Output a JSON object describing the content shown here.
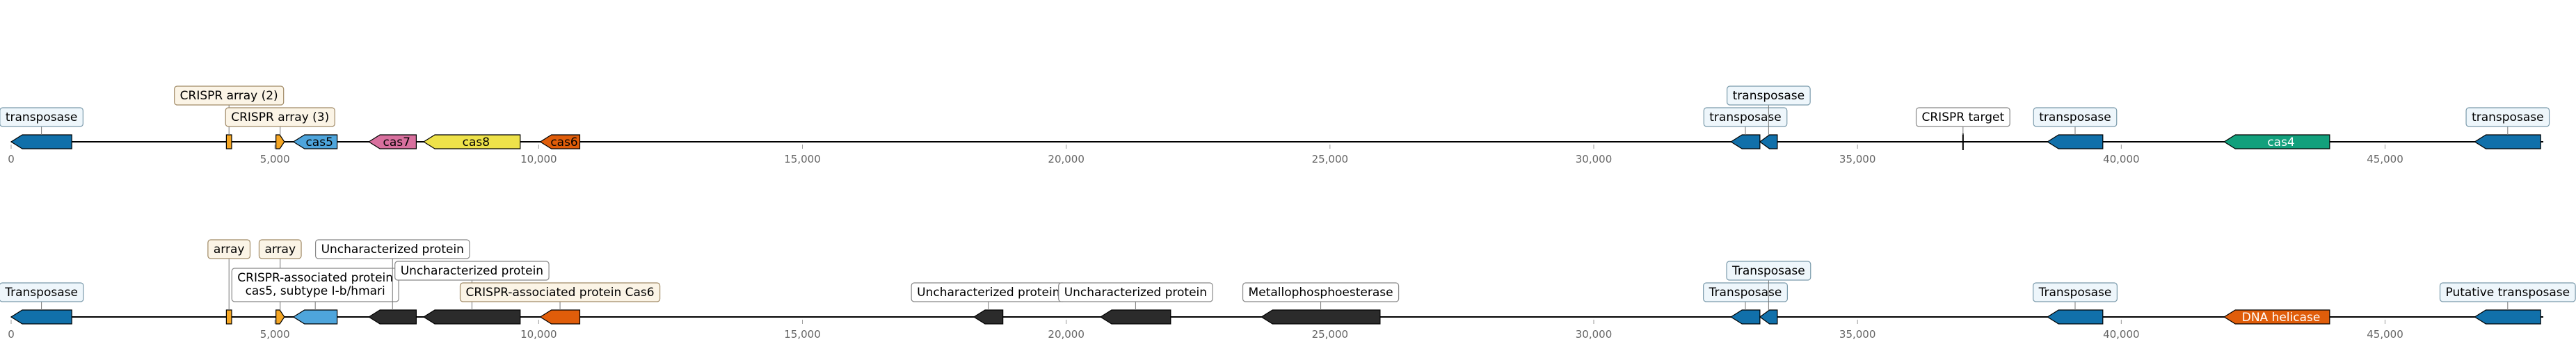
{
  "colors": {
    "transposase": "#1170aa",
    "crispr_array": "#f5a623",
    "cas5": "#4ea5dc",
    "cas7": "#d8709e",
    "cas8": "#eee24a",
    "cas6": "#e05d0a",
    "cas4": "#12a07c",
    "dna_helicase": "#e05d0a",
    "uncharacterized": "#2b2b2b",
    "backbone": "#000000"
  },
  "axis": {
    "min": 0,
    "max": 48000,
    "ticks": [
      0,
      5000,
      10000,
      15000,
      20000,
      25000,
      30000,
      35000,
      40000,
      45000
    ],
    "tick_labels": [
      "0",
      "5,000",
      "10,000",
      "15,000",
      "20,000",
      "25,000",
      "30,000",
      "35,000",
      "40,000",
      "45,000"
    ]
  },
  "tracks": [
    {
      "id": "top",
      "genes": [
        {
          "start": 0,
          "end": 1150,
          "strand": -1,
          "type": "transposase",
          "label": "transposase",
          "label_mode": "above",
          "level": 0
        },
        {
          "start": 4080,
          "end": 4180,
          "strand": 1,
          "type": "crispr_array",
          "label": "CRISPR array (2)",
          "label_mode": "above",
          "level": 1
        },
        {
          "start": 5020,
          "end": 5180,
          "strand": 1,
          "type": "crispr_array",
          "label": "CRISPR array (3)",
          "label_mode": "above",
          "level": 0
        },
        {
          "start": 5350,
          "end": 6180,
          "strand": -1,
          "type": "cas5",
          "label": "cas5",
          "label_mode": "inside"
        },
        {
          "start": 6780,
          "end": 7680,
          "strand": -1,
          "type": "cas7",
          "label": "cas7",
          "label_mode": "inside"
        },
        {
          "start": 7820,
          "end": 9650,
          "strand": -1,
          "type": "cas8",
          "label": "cas8",
          "label_mode": "inside"
        },
        {
          "start": 10030,
          "end": 10780,
          "strand": -1,
          "type": "cas6",
          "label": "cas6",
          "label_mode": "inside"
        },
        {
          "start": 32600,
          "end": 33150,
          "strand": -1,
          "type": "transposase",
          "label": "transposase",
          "label_mode": "above",
          "level": 0
        },
        {
          "start": 33150,
          "end": 33480,
          "strand": -1,
          "type": "transposase",
          "label": "transposase",
          "label_mode": "above",
          "level": 1
        },
        {
          "start": 37000,
          "end": 37000,
          "strand": 0,
          "type": "target",
          "label": "CRISPR target",
          "label_mode": "above",
          "level": 0
        },
        {
          "start": 38600,
          "end": 39650,
          "strand": -1,
          "type": "transposase",
          "label": "transposase",
          "label_mode": "above",
          "level": 0
        },
        {
          "start": 41950,
          "end": 43950,
          "strand": -1,
          "type": "cas4",
          "label": "cas4",
          "label_mode": "inside"
        },
        {
          "start": 46700,
          "end": 47950,
          "strand": -1,
          "type": "transposase",
          "label": "transposase",
          "label_mode": "above",
          "level": 0
        }
      ]
    },
    {
      "id": "bottom",
      "genes": [
        {
          "start": 0,
          "end": 1150,
          "strand": -1,
          "type": "transposase",
          "label": "Transposase",
          "label_mode": "above",
          "level": 0
        },
        {
          "start": 4080,
          "end": 4180,
          "strand": 1,
          "type": "crispr_array",
          "label": "array",
          "label_mode": "above",
          "level": 2
        },
        {
          "start": 5020,
          "end": 5180,
          "strand": 1,
          "type": "crispr_array",
          "label": "array",
          "label_mode": "above",
          "level": 2
        },
        {
          "start": 5350,
          "end": 6180,
          "strand": -1,
          "type": "cas5",
          "label": "CRISPR-associated protein\ncas5, subtype I-b/hmari",
          "label_mode": "above",
          "level": 0
        },
        {
          "start": 6780,
          "end": 7680,
          "strand": -1,
          "type": "uncharacterized",
          "label": "Uncharacterized protein",
          "label_mode": "above",
          "level": 2
        },
        {
          "start": 7820,
          "end": 9650,
          "strand": -1,
          "type": "uncharacterized",
          "label": "Uncharacterized protein",
          "label_mode": "above",
          "level": 1
        },
        {
          "start": 10030,
          "end": 10780,
          "strand": -1,
          "type": "cas6",
          "label": "CRISPR-associated protein Cas6",
          "label_mode": "above",
          "level": 0
        },
        {
          "start": 18250,
          "end": 18800,
          "strand": -1,
          "type": "uncharacterized",
          "label": "Uncharacterized protein",
          "label_mode": "above",
          "level": 0
        },
        {
          "start": 20650,
          "end": 21980,
          "strand": -1,
          "type": "uncharacterized",
          "label": "Uncharacterized protein",
          "label_mode": "above",
          "level": 0
        },
        {
          "start": 23700,
          "end": 25950,
          "strand": -1,
          "type": "uncharacterized",
          "label": "Metallophosphoesterase",
          "label_mode": "above",
          "level": 0
        },
        {
          "start": 32600,
          "end": 33150,
          "strand": -1,
          "type": "transposase",
          "label": "Transposase",
          "label_mode": "above",
          "level": 0
        },
        {
          "start": 33150,
          "end": 33480,
          "strand": -1,
          "type": "transposase",
          "label": "Transposase",
          "label_mode": "above",
          "level": 1
        },
        {
          "start": 38600,
          "end": 39650,
          "strand": -1,
          "type": "transposase",
          "label": "Transposase",
          "label_mode": "above",
          "level": 0
        },
        {
          "start": 41950,
          "end": 43950,
          "strand": -1,
          "type": "dna_helicase",
          "label": "DNA helicase",
          "label_mode": "inside"
        },
        {
          "start": 46700,
          "end": 47950,
          "strand": -1,
          "type": "transposase",
          "label": "Putative transposase",
          "label_mode": "above",
          "level": 0
        }
      ]
    }
  ]
}
